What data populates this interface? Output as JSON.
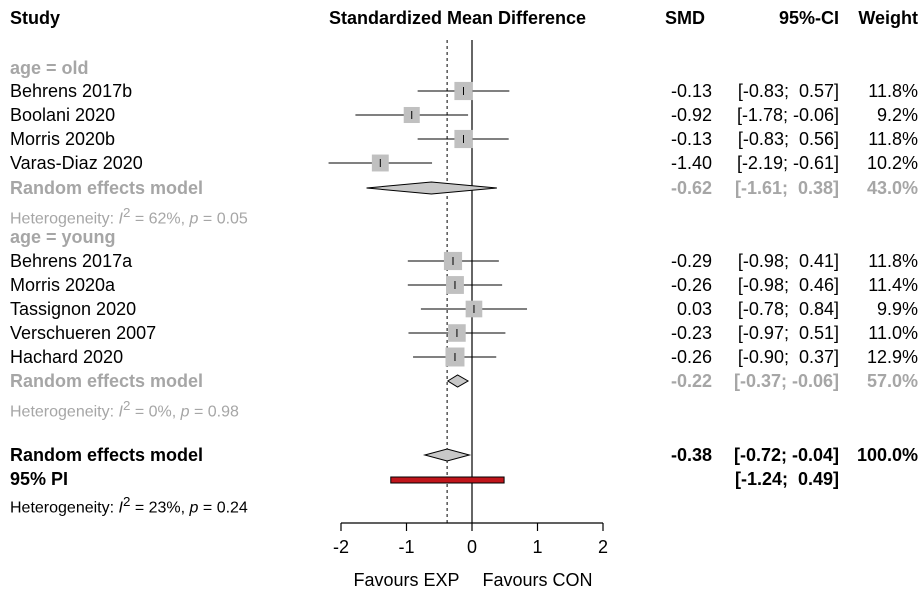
{
  "chart_data": {
    "type": "forest",
    "columns": {
      "study": "Study",
      "effect": "Standardized Mean Difference",
      "smd": "SMD",
      "ci": "95%-CI",
      "weight": "Weight"
    },
    "xlim": [
      -2,
      2
    ],
    "ticks": [
      "-2",
      "-1",
      "0",
      "1",
      "2"
    ],
    "tick_values": [
      -2,
      -1,
      0,
      1,
      2
    ],
    "xlabel_left": "Favours EXP",
    "xlabel_right": "Favours CON",
    "overall_line": -0.38,
    "groups": [
      {
        "label": "age = old",
        "studies": [
          {
            "name": "Behrens 2017b",
            "smd": -0.13,
            "lo": -0.83,
            "hi": 0.57,
            "smd_text": "-0.13",
            "ci_text": "[-0.83;  0.57]",
            "weight_text": "11.8%",
            "weight": 11.8
          },
          {
            "name": "Boolani 2020",
            "smd": -0.92,
            "lo": -1.78,
            "hi": -0.06,
            "smd_text": "-0.92",
            "ci_text": "[-1.78; -0.06]",
            "weight_text": "9.2%",
            "weight": 9.2
          },
          {
            "name": "Morris 2020b",
            "smd": -0.13,
            "lo": -0.83,
            "hi": 0.56,
            "smd_text": "-0.13",
            "ci_text": "[-0.83;  0.56]",
            "weight_text": "11.8%",
            "weight": 11.8
          },
          {
            "name": "Varas-Diaz 2020",
            "smd": -1.4,
            "lo": -2.19,
            "hi": -0.61,
            "smd_text": "-1.40",
            "ci_text": "[-2.19; -0.61]",
            "weight_text": "10.2%",
            "weight": 10.2
          }
        ],
        "model": {
          "label": "Random effects model",
          "smd": -0.62,
          "lo": -1.61,
          "hi": 0.38,
          "smd_text": "-0.62",
          "ci_text": "[-1.61;  0.38]",
          "weight_text": "43.0%"
        },
        "heterogeneity": {
          "prefix": "Heterogeneity: ",
          "i2_sym": "I",
          "sup": "2",
          "i2_rest": " = 62%, ",
          "p_sym": "p",
          "p_rest": " = 0.05"
        }
      },
      {
        "label": "age = young",
        "studies": [
          {
            "name": "Behrens 2017a",
            "smd": -0.29,
            "lo": -0.98,
            "hi": 0.41,
            "smd_text": "-0.29",
            "ci_text": "[-0.98;  0.41]",
            "weight_text": "11.8%",
            "weight": 11.8
          },
          {
            "name": "Morris 2020a",
            "smd": -0.26,
            "lo": -0.98,
            "hi": 0.46,
            "smd_text": "-0.26",
            "ci_text": "[-0.98;  0.46]",
            "weight_text": "11.4%",
            "weight": 11.4
          },
          {
            "name": "Tassignon 2020",
            "smd": 0.03,
            "lo": -0.78,
            "hi": 0.84,
            "smd_text": "0.03",
            "ci_text": "[-0.78;  0.84]",
            "weight_text": "9.9%",
            "weight": 9.9
          },
          {
            "name": "Verschueren 2007",
            "smd": -0.23,
            "lo": -0.97,
            "hi": 0.51,
            "smd_text": "-0.23",
            "ci_text": "[-0.97;  0.51]",
            "weight_text": "11.0%",
            "weight": 11.0
          },
          {
            "name": "Hachard 2020",
            "smd": -0.26,
            "lo": -0.9,
            "hi": 0.37,
            "smd_text": "-0.26",
            "ci_text": "[-0.90;  0.37]",
            "weight_text": "12.9%",
            "weight": 12.9
          }
        ],
        "model": {
          "label": "Random effects model",
          "smd": -0.22,
          "lo": -0.37,
          "hi": -0.06,
          "smd_text": "-0.22",
          "ci_text": "[-0.37; -0.06]",
          "weight_text": "57.0%"
        },
        "heterogeneity": {
          "prefix": "Heterogeneity: ",
          "i2_sym": "I",
          "sup": "2",
          "i2_rest": " = 0%, ",
          "p_sym": "p",
          "p_rest": " = 0.98"
        }
      }
    ],
    "overall": {
      "model": {
        "label": "Random effects model",
        "smd": -0.38,
        "lo": -0.72,
        "hi": -0.04,
        "smd_text": "-0.38",
        "ci_text": "[-0.72; -0.04]",
        "weight_text": "100.0%"
      },
      "pi": {
        "label": "95% PI",
        "lo": -1.24,
        "hi": 0.49,
        "ci_text": "[-1.24;  0.49]"
      },
      "heterogeneity": {
        "prefix": "Heterogeneity: ",
        "i2_sym": "I",
        "sup": "2",
        "i2_rest": " = 23%, ",
        "p_sym": "p",
        "p_rest": " = 0.24"
      }
    },
    "colors": {
      "square": "#c0c0c0",
      "subgroup_text": "#a6a6a6",
      "pi_bar": "#c0151b",
      "diamond": "#c8c8c8"
    }
  }
}
